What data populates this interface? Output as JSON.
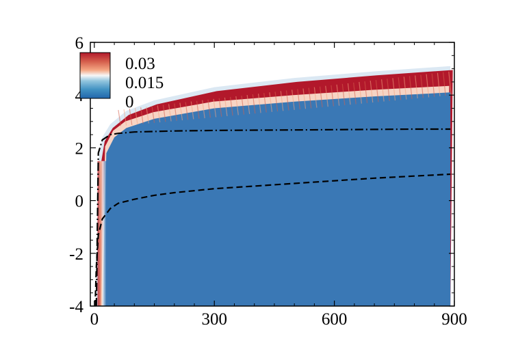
{
  "chart_data": {
    "type": "heatmap",
    "title": "",
    "xlabel": "",
    "ylabel": "",
    "xlim": [
      -10,
      900
    ],
    "ylim": [
      -4,
      6
    ],
    "x_ticks": [
      0,
      300,
      600,
      900
    ],
    "y_ticks": [
      -4,
      -2,
      0,
      2,
      4,
      6
    ],
    "x_tick_labels": [
      "0",
      "300",
      "600",
      "900"
    ],
    "y_tick_labels": [
      "-4",
      "-2",
      "0",
      "2",
      "4",
      "6"
    ],
    "colorbar": {
      "levels": [
        "0.03",
        "0.015",
        "0"
      ],
      "colors": {
        "high": "#b2182b",
        "mid": "#f7f7f7",
        "low": "#2166ac",
        "background": "#3a78b5"
      },
      "placement": "top-left"
    },
    "grid": false,
    "lines": [
      {
        "style": "dash-dot",
        "x": [
          5,
          10,
          20,
          40,
          60,
          100,
          200,
          300,
          400,
          500,
          600,
          700,
          800,
          890
        ],
        "y": [
          -4,
          1.8,
          2.3,
          2.5,
          2.55,
          2.6,
          2.64,
          2.66,
          2.67,
          2.68,
          2.69,
          2.7,
          2.71,
          2.71
        ]
      },
      {
        "style": "dashed",
        "x": [
          2,
          5,
          10,
          20,
          40,
          60,
          100,
          150,
          200,
          300,
          400,
          500,
          600,
          700,
          800,
          890
        ],
        "y": [
          -4,
          -2.5,
          -1.3,
          -0.7,
          -0.3,
          -0.1,
          0.05,
          0.2,
          0.3,
          0.45,
          0.55,
          0.65,
          0.75,
          0.85,
          0.93,
          1.0
        ]
      }
    ],
    "band_edges": {
      "outer_top": {
        "x": [
          5,
          10,
          20,
          40,
          80,
          150,
          300,
          500,
          700,
          890
        ],
        "y": [
          -4,
          1.5,
          2.4,
          2.9,
          3.4,
          3.8,
          4.3,
          4.65,
          4.9,
          5.1
        ]
      },
      "red_lower": {
        "x": [
          20,
          30,
          50,
          80,
          150,
          300,
          500,
          700,
          890
        ],
        "y": [
          -4,
          1.8,
          2.4,
          2.75,
          3.1,
          3.5,
          3.75,
          3.95,
          4.1
        ]
      }
    }
  }
}
